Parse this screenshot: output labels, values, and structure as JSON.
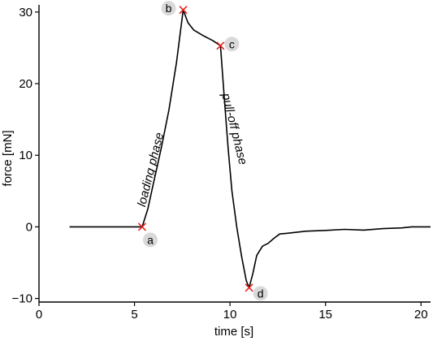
{
  "chart_data": {
    "type": "line",
    "title": "",
    "xlabel": "time [s]",
    "ylabel": "force [mN]",
    "xlim": [
      0,
      20.5
    ],
    "ylim": [
      -10.5,
      31
    ],
    "xticks": [
      0,
      5,
      10,
      15,
      20
    ],
    "yticks": [
      -10,
      0,
      10,
      20,
      30
    ],
    "xtick_labels": [
      "0",
      "5",
      "10",
      "15",
      "20"
    ],
    "ytick_labels": [
      "−10",
      "0",
      "10",
      "20",
      "30"
    ],
    "grid": false,
    "legend": "none",
    "colors": {
      "line": "#000000",
      "marker": "#e8211a",
      "label_bubble": "#d9d9d9"
    },
    "series": [
      {
        "values": [
          [
            1.6,
            0
          ],
          [
            2.5,
            0
          ],
          [
            3.5,
            0
          ],
          [
            4.5,
            0
          ],
          [
            5.2,
            0
          ],
          [
            5.4,
            0
          ],
          [
            5.7,
            2.5
          ],
          [
            6.0,
            6.2
          ],
          [
            6.4,
            11
          ],
          [
            6.8,
            16.3
          ],
          [
            7.2,
            23
          ],
          [
            7.55,
            30.3
          ],
          [
            7.8,
            28.5
          ],
          [
            8.1,
            27.5
          ],
          [
            8.6,
            26.7
          ],
          [
            9.1,
            26.0
          ],
          [
            9.5,
            25.3
          ],
          [
            9.7,
            18
          ],
          [
            9.9,
            11
          ],
          [
            10.1,
            5
          ],
          [
            10.35,
            0
          ],
          [
            10.6,
            -4
          ],
          [
            10.85,
            -7.5
          ],
          [
            11.0,
            -8.5
          ],
          [
            11.2,
            -6.5
          ],
          [
            11.4,
            -4
          ],
          [
            11.7,
            -2.7
          ],
          [
            12.0,
            -2.3
          ],
          [
            12.3,
            -1.6
          ],
          [
            12.6,
            -1.0
          ],
          [
            13.0,
            -0.9
          ],
          [
            14.0,
            -0.6
          ],
          [
            15.0,
            -0.5
          ],
          [
            16.0,
            -0.35
          ],
          [
            17.0,
            -0.45
          ],
          [
            18.0,
            -0.25
          ],
          [
            19.0,
            -0.15
          ],
          [
            19.5,
            0
          ],
          [
            20.5,
            0
          ]
        ]
      }
    ],
    "markers": [
      {
        "label": "a",
        "x": 5.4,
        "y": 0
      },
      {
        "label": "b",
        "x": 7.55,
        "y": 30.3
      },
      {
        "label": "c",
        "x": 9.5,
        "y": 25.3
      },
      {
        "label": "d",
        "x": 11.0,
        "y": -8.5
      }
    ],
    "annotations": [
      {
        "text": "loading phase"
      },
      {
        "text": "pull-off phase"
      }
    ]
  }
}
